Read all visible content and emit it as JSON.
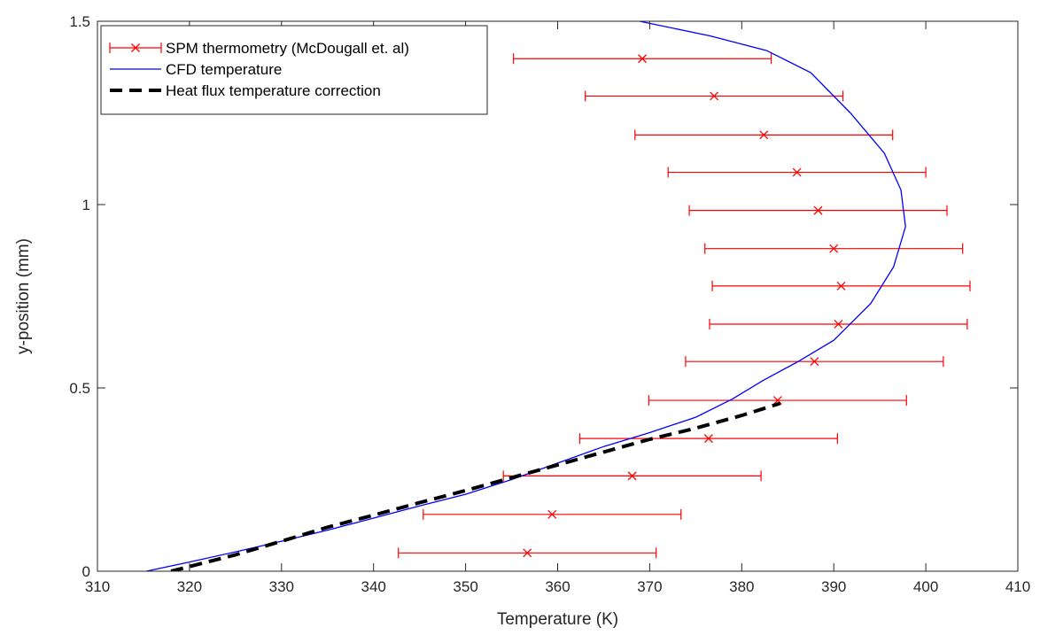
{
  "chart_data": {
    "type": "scatter",
    "xlabel": "Temperature (K)",
    "ylabel": "y-position (mm)",
    "xlim": [
      310,
      410
    ],
    "ylim": [
      0,
      1.5
    ],
    "x_ticks": [
      310,
      320,
      330,
      340,
      350,
      360,
      370,
      380,
      390,
      400,
      410
    ],
    "y_ticks": [
      0,
      0.5,
      1,
      1.5
    ],
    "y_tick_labels": [
      "0",
      "0.5",
      "1",
      "1.5"
    ],
    "grid": false,
    "legend_position": "top-left",
    "series": [
      {
        "name": "SPM thermometry (McDougall et. al)",
        "kind": "errorbar",
        "color": "#ff0000",
        "marker": "x",
        "points": [
          {
            "x": 356.7,
            "y": 0.05,
            "err": 14.0
          },
          {
            "x": 359.4,
            "y": 0.155,
            "err": 14.0
          },
          {
            "x": 368.1,
            "y": 0.26,
            "err": 14.0
          },
          {
            "x": 376.4,
            "y": 0.362,
            "err": 14.0
          },
          {
            "x": 383.9,
            "y": 0.466,
            "err": 14.0
          },
          {
            "x": 387.9,
            "y": 0.572,
            "err": 14.0
          },
          {
            "x": 390.5,
            "y": 0.674,
            "err": 14.0
          },
          {
            "x": 390.8,
            "y": 0.778,
            "err": 14.0
          },
          {
            "x": 390.0,
            "y": 0.88,
            "err": 14.0
          },
          {
            "x": 388.3,
            "y": 0.984,
            "err": 14.0
          },
          {
            "x": 386.0,
            "y": 1.088,
            "err": 14.0
          },
          {
            "x": 382.4,
            "y": 1.19,
            "err": 14.0
          },
          {
            "x": 377.0,
            "y": 1.296,
            "err": 14.0
          },
          {
            "x": 369.2,
            "y": 1.398,
            "err": 14.0
          }
        ]
      },
      {
        "name": "CFD temperature",
        "kind": "line",
        "color": "#0000ff",
        "style": "solid",
        "x": [
          315.3,
          320,
          325,
          330,
          335,
          340,
          345,
          350,
          355,
          360,
          365,
          370,
          375,
          379,
          382.3,
          386,
          390,
          394,
          396.5,
          397.8,
          397.3,
          395.5,
          391.8,
          387.5,
          382.7,
          376.6,
          368.9
        ],
        "y": [
          0,
          0.025,
          0.053,
          0.082,
          0.112,
          0.145,
          0.178,
          0.21,
          0.25,
          0.295,
          0.34,
          0.378,
          0.42,
          0.47,
          0.52,
          0.57,
          0.63,
          0.73,
          0.83,
          0.94,
          1.04,
          1.14,
          1.25,
          1.36,
          1.42,
          1.46,
          1.5
        ]
      },
      {
        "name": "Heat flux temperature correction",
        "kind": "line",
        "color": "#000000",
        "style": "dashed",
        "x": [
          318.0,
          325,
          330,
          335,
          340,
          345,
          350,
          355,
          360,
          365,
          370,
          375,
          380,
          384.2
        ],
        "y": [
          0,
          0.045,
          0.082,
          0.12,
          0.153,
          0.187,
          0.22,
          0.255,
          0.29,
          0.325,
          0.36,
          0.39,
          0.425,
          0.458
        ]
      }
    ]
  }
}
